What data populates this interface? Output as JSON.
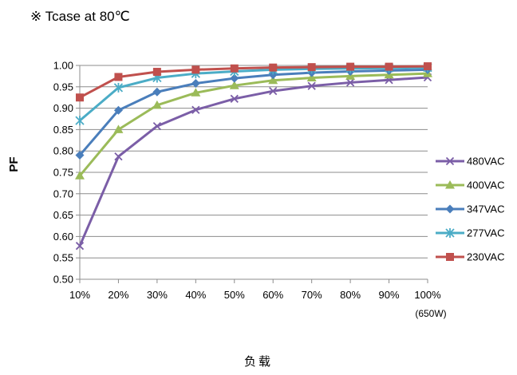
{
  "chart_data": {
    "type": "line",
    "title": "※ Tcase at 80℃",
    "ylabel": "PF",
    "xlabel": "负载",
    "x_note": "(650W)",
    "categories": [
      "10%",
      "20%",
      "30%",
      "40%",
      "50%",
      "60%",
      "70%",
      "80%",
      "90%",
      "100%"
    ],
    "ylim": [
      0.5,
      1.0
    ],
    "yticks": [
      "0.50",
      "0.55",
      "0.60",
      "0.65",
      "0.70",
      "0.75",
      "0.80",
      "0.85",
      "0.90",
      "0.95",
      "1.00"
    ],
    "grid": true,
    "legend_position": "right",
    "series": [
      {
        "name": "480VAC",
        "color": "#7b5ea7",
        "marker": "x",
        "values": [
          0.578,
          0.787,
          0.858,
          0.896,
          0.922,
          0.94,
          0.952,
          0.96,
          0.966,
          0.972
        ]
      },
      {
        "name": "400VAC",
        "color": "#9bbb59",
        "marker": "triangle",
        "values": [
          0.742,
          0.85,
          0.907,
          0.936,
          0.953,
          0.965,
          0.971,
          0.975,
          0.978,
          0.981
        ]
      },
      {
        "name": "347VAC",
        "color": "#4a7ebb",
        "marker": "diamond",
        "values": [
          0.79,
          0.895,
          0.938,
          0.958,
          0.97,
          0.978,
          0.983,
          0.986,
          0.988,
          0.99
        ]
      },
      {
        "name": "277VAC",
        "color": "#4bacc6",
        "marker": "star",
        "values": [
          0.871,
          0.948,
          0.971,
          0.981,
          0.986,
          0.99,
          0.992,
          0.993,
          0.994,
          0.995
        ]
      },
      {
        "name": "230VAC",
        "color": "#c0504d",
        "marker": "square",
        "values": [
          0.925,
          0.973,
          0.985,
          0.99,
          0.993,
          0.995,
          0.996,
          0.997,
          0.997,
          0.998
        ]
      }
    ]
  }
}
